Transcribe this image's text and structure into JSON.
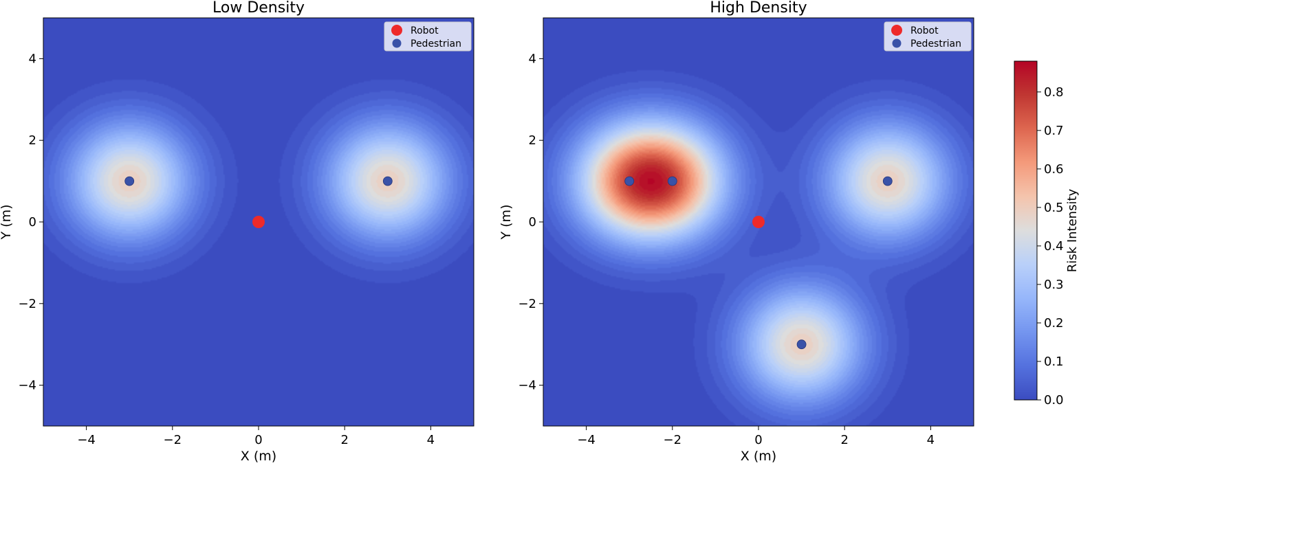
{
  "chart_data": [
    {
      "type": "heatmap",
      "title": "Low Density",
      "xlabel": "X (m)",
      "ylabel": "Y (m)",
      "xlim": [
        -5,
        5
      ],
      "ylim": [
        -5,
        5
      ],
      "xticks": [
        -4,
        -2,
        0,
        2,
        4
      ],
      "yticks": [
        -4,
        -2,
        0,
        2,
        4
      ],
      "grid": false,
      "legend_position": "top-right",
      "legend": [
        {
          "label": "Robot",
          "color": "#ee2a2a"
        },
        {
          "label": "Pedestrian",
          "color": "#3a52a8"
        }
      ],
      "robot": {
        "x": 0,
        "y": 0
      },
      "pedestrians": [
        {
          "x": -3,
          "y": 1
        },
        {
          "x": 3,
          "y": 1
        }
      ]
    },
    {
      "type": "heatmap",
      "title": "High Density",
      "xlabel": "X (m)",
      "ylabel": "Y (m)",
      "xlim": [
        -5,
        5
      ],
      "ylim": [
        -5,
        5
      ],
      "xticks": [
        -4,
        -2,
        0,
        2,
        4
      ],
      "yticks": [
        -4,
        -2,
        0,
        2,
        4
      ],
      "grid": false,
      "legend_position": "top-right",
      "legend": [
        {
          "label": "Robot",
          "color": "#ee2a2a"
        },
        {
          "label": "Pedestrian",
          "color": "#3a52a8"
        }
      ],
      "robot": {
        "x": 0,
        "y": 0
      },
      "pedestrians": [
        {
          "x": -3,
          "y": 1
        },
        {
          "x": -2,
          "y": 1
        },
        {
          "x": 3,
          "y": 1
        },
        {
          "x": 1,
          "y": -3
        }
      ]
    }
  ],
  "colorbar": {
    "label": "Risk Intensity",
    "colormap": "coolwarm",
    "range": [
      0.0,
      0.88
    ],
    "ticks": [
      "0.0",
      "0.1",
      "0.2",
      "0.3",
      "0.4",
      "0.5",
      "0.6",
      "0.7",
      "0.8"
    ]
  }
}
